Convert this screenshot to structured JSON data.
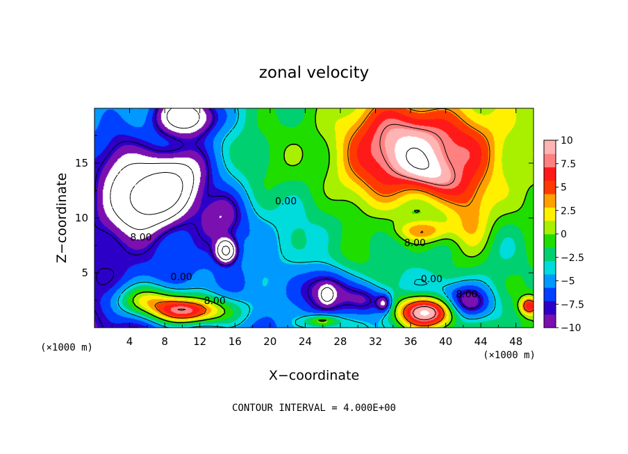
{
  "chart_data": {
    "type": "heatmap",
    "title": "zonal velocity",
    "xlabel": "X−coordinate",
    "ylabel": "Z−coordinate",
    "x_units": "(×1000 m)",
    "y_units": "(×1000 m)",
    "xlim": [
      0,
      50
    ],
    "ylim": [
      0,
      20
    ],
    "x_ticks": [
      4,
      8,
      12,
      16,
      20,
      24,
      28,
      32,
      36,
      40,
      44,
      48
    ],
    "y_ticks": [
      5,
      10,
      15
    ],
    "x_tick_labels": [
      "4",
      "8",
      "12",
      "16",
      "20",
      "24",
      "28",
      "32",
      "36",
      "40",
      "44",
      "48"
    ],
    "y_tick_labels": [
      "5",
      "10",
      "15"
    ],
    "colorbar": {
      "vmin": -10,
      "vmax": 10,
      "ticks": [
        10,
        7.5,
        5,
        2.5,
        0,
        -2.5,
        -5,
        -7.5,
        -10
      ],
      "tick_labels": [
        "10",
        "7.5",
        "5",
        "2.5",
        "0",
        "−2.5",
        "−5",
        "−7.5",
        "−10"
      ],
      "colors_low_to_high": [
        "#7a10b0",
        "#2d00c8",
        "#0040ff",
        "#0099ff",
        "#00dcdc",
        "#00d070",
        "#20dd00",
        "#a8f000",
        "#fff000",
        "#ffa000",
        "#ff3a00",
        "#ff1a1a",
        "#ff8080",
        "#ffb4b4"
      ],
      "out_of_range_color": "#ffffff"
    },
    "contour_labels": [
      {
        "text": "0.00",
        "x": 21.8,
        "y": 11.5
      },
      {
        "text": "8.00",
        "x": 5.3,
        "y": 8.2
      },
      {
        "text": "0.00",
        "x": 9.9,
        "y": 4.6
      },
      {
        "text": "8.00",
        "x": 13.7,
        "y": 2.4
      },
      {
        "text": "8.00",
        "x": 36.5,
        "y": 7.7
      },
      {
        "text": "0.00",
        "x": 38.4,
        "y": 4.4
      },
      {
        "text": "8.00",
        "x": 42.4,
        "y": 3.0
      }
    ],
    "features": [
      {
        "x": 7.5,
        "z": 12.4,
        "sx": 4.8,
        "sz": 2.8,
        "rot": 0.45,
        "amp": -15
      },
      {
        "x": 10.5,
        "z": 19.3,
        "sx": 3.5,
        "sz": 1.8,
        "rot": 0,
        "amp": -11
      },
      {
        "x": 3.0,
        "z": 14.5,
        "sx": 2.8,
        "sz": 3.5,
        "rot": 0,
        "amp": -5
      },
      {
        "x": 14.5,
        "z": 10.0,
        "sx": 2.8,
        "sz": 2.5,
        "rot": 0,
        "amp": -5
      },
      {
        "x": 15.0,
        "z": 7.0,
        "sx": 1.1,
        "sz": 1.0,
        "rot": 0,
        "amp": -12
      },
      {
        "x": 20.5,
        "z": 15.0,
        "sx": 4.5,
        "sz": 4.0,
        "rot": 0,
        "amp": 2.5
      },
      {
        "x": 28.0,
        "z": 5.5,
        "sx": 4.5,
        "sz": 3.0,
        "rot": 0,
        "amp": 3
      },
      {
        "x": 36.0,
        "z": 16.5,
        "sx": 7.5,
        "sz": 4.0,
        "rot": -0.2,
        "amp": 11
      },
      {
        "x": 31.0,
        "z": 13.0,
        "sx": 5.0,
        "sz": 3.5,
        "rot": 0,
        "amp": 4
      },
      {
        "x": 38.5,
        "z": 14.0,
        "sx": 3.6,
        "sz": 1.6,
        "rot": -0.35,
        "amp": 4
      },
      {
        "x": 37.5,
        "z": 8.8,
        "sx": 3.2,
        "sz": 1.0,
        "rot": 0,
        "amp": 5
      },
      {
        "x": 43.0,
        "z": 10.0,
        "sx": 2.5,
        "sz": 4.0,
        "rot": 0,
        "amp": 4
      },
      {
        "x": 43.0,
        "z": 17.0,
        "sx": 3.5,
        "sz": 3.0,
        "rot": 0,
        "amp": 2
      },
      {
        "x": 6.0,
        "z": 2.5,
        "sx": 4.0,
        "sz": 1.5,
        "rot": 0,
        "amp": 8
      },
      {
        "x": 11.5,
        "z": 1.5,
        "sx": 5.0,
        "sz": 1.4,
        "rot": 0,
        "amp": 9
      },
      {
        "x": 10.0,
        "z": 1.5,
        "sx": 3.0,
        "sz": 1.0,
        "rot": 0,
        "amp": 5
      },
      {
        "x": 26.5,
        "z": 3.6,
        "sx": 2.8,
        "sz": 2.2,
        "rot": 0,
        "amp": -8
      },
      {
        "x": 26.5,
        "z": 3.0,
        "sx": 0.7,
        "sz": 0.7,
        "rot": 0,
        "amp": -6
      },
      {
        "x": 31.0,
        "z": 2.5,
        "sx": 2.5,
        "sz": 1.5,
        "rot": 0,
        "amp": -5
      },
      {
        "x": 33.0,
        "z": 2.2,
        "sx": 0.8,
        "sz": 0.8,
        "rot": 0,
        "amp": -6
      },
      {
        "x": 38.0,
        "z": 1.5,
        "sx": 3.5,
        "sz": 1.5,
        "rot": 0,
        "amp": 16
      },
      {
        "x": 40.5,
        "z": 2.5,
        "sx": 4.5,
        "sz": 1.8,
        "rot": 0,
        "amp": -6
      },
      {
        "x": 42.5,
        "z": 2.0,
        "sx": 2.5,
        "sz": 1.5,
        "rot": 0,
        "amp": -5
      },
      {
        "x": 26.0,
        "z": 0.6,
        "sx": 2.0,
        "sz": 0.6,
        "rot": 0,
        "amp": 7
      },
      {
        "x": 49.5,
        "z": 2.0,
        "sx": 1.0,
        "sz": 0.8,
        "rot": 0,
        "amp": 8
      },
      {
        "x": 46.5,
        "z": 7.0,
        "sx": 3.5,
        "sz": 3.0,
        "rot": 0,
        "amp": -2
      }
    ]
  },
  "footer": {
    "contour_interval": "CONTOUR INTERVAL = 4.000E+00"
  }
}
